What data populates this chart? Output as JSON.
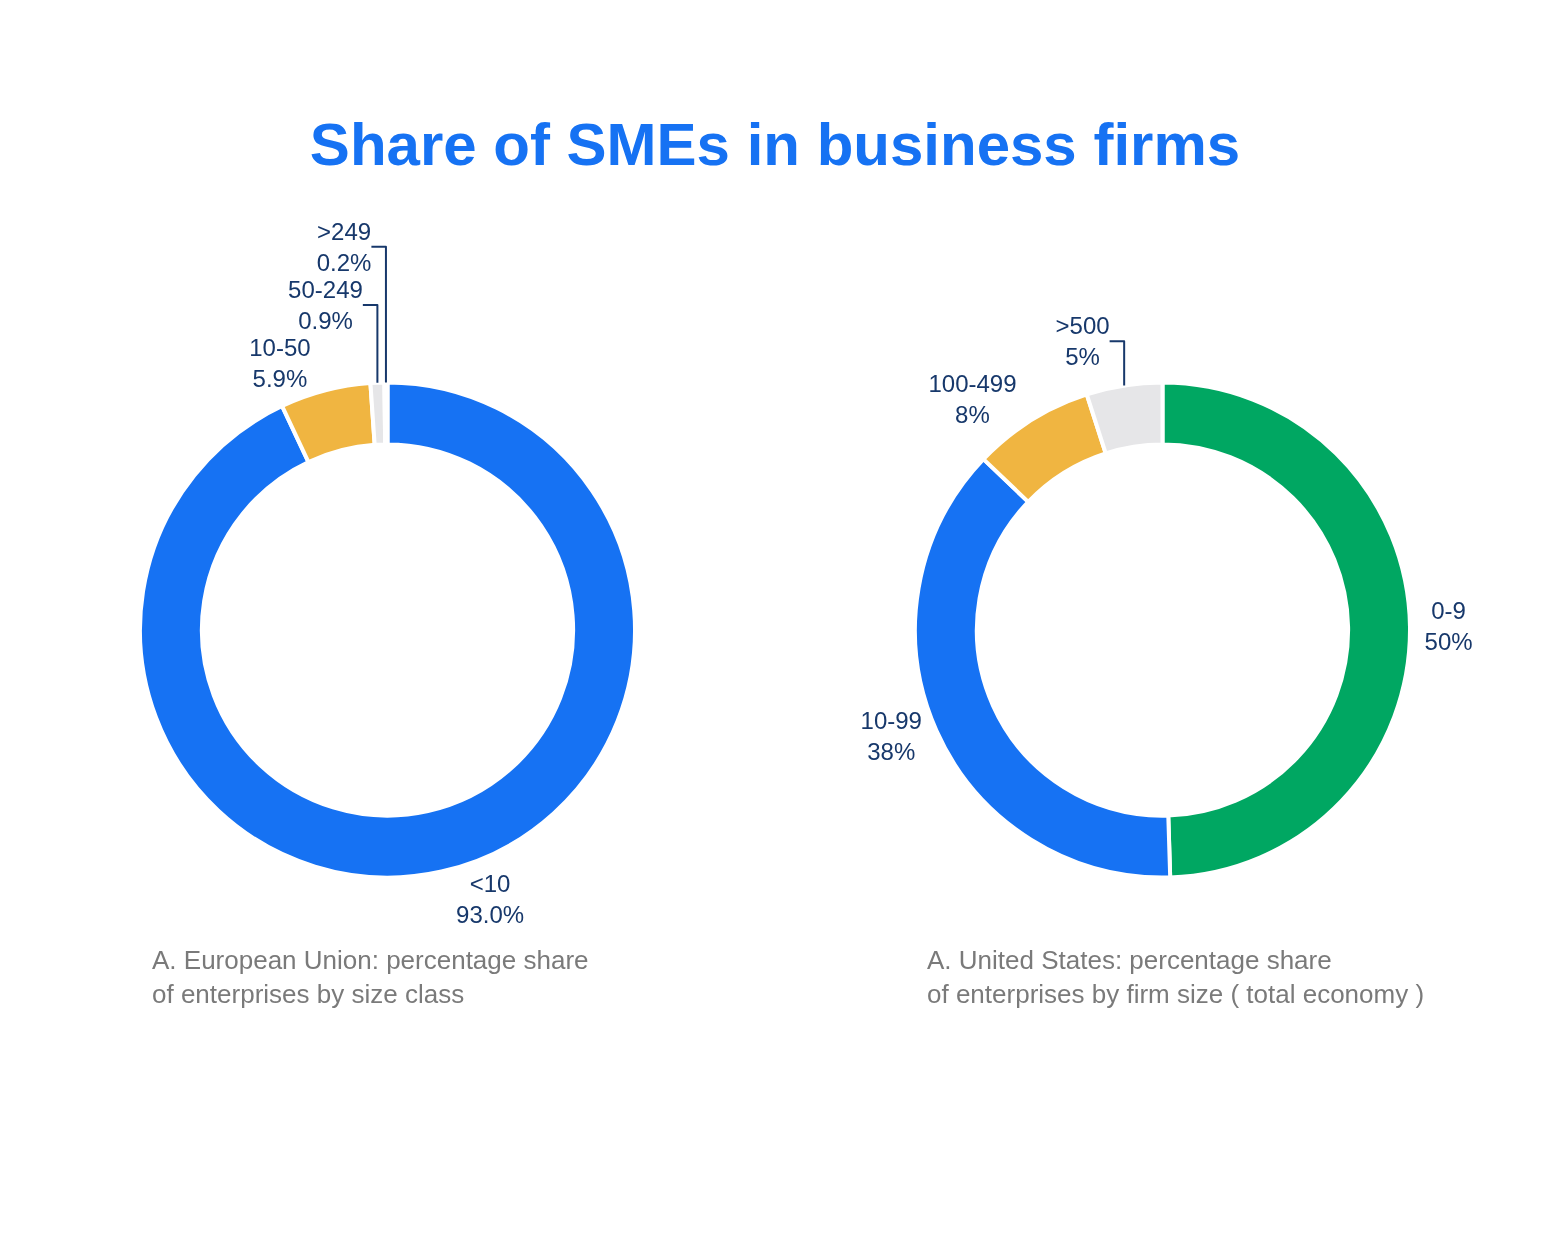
{
  "chart_data": [
    {
      "type": "donut",
      "title": "Share of SMEs in business firms",
      "categories": [
        "<10",
        "10-50",
        "50-249",
        ">249"
      ],
      "values": [
        93.0,
        5.9,
        0.9,
        0.2
      ],
      "value_labels": [
        "93.0%",
        "5.9%",
        "0.9%",
        "0.2%"
      ],
      "colors": [
        "#1672f3",
        "#f0b541",
        "#e6e6e8",
        "#8ab8f5"
      ],
      "annotations": [
        "A. European Union: percentage share\nof enterprises by size class"
      ]
    },
    {
      "type": "donut",
      "categories": [
        "0-9",
        "10-99",
        "100-499",
        ">500"
      ],
      "values": [
        50,
        38,
        8,
        5
      ],
      "value_labels": [
        "50%",
        "38%",
        "8%",
        "5%"
      ],
      "colors": [
        "#00a762",
        "#1672f3",
        "#f0b541",
        "#e6e6e8"
      ],
      "annotations": [
        "A. United States: percentage share\nof enterprises by firm size ( total economy )"
      ]
    }
  ]
}
